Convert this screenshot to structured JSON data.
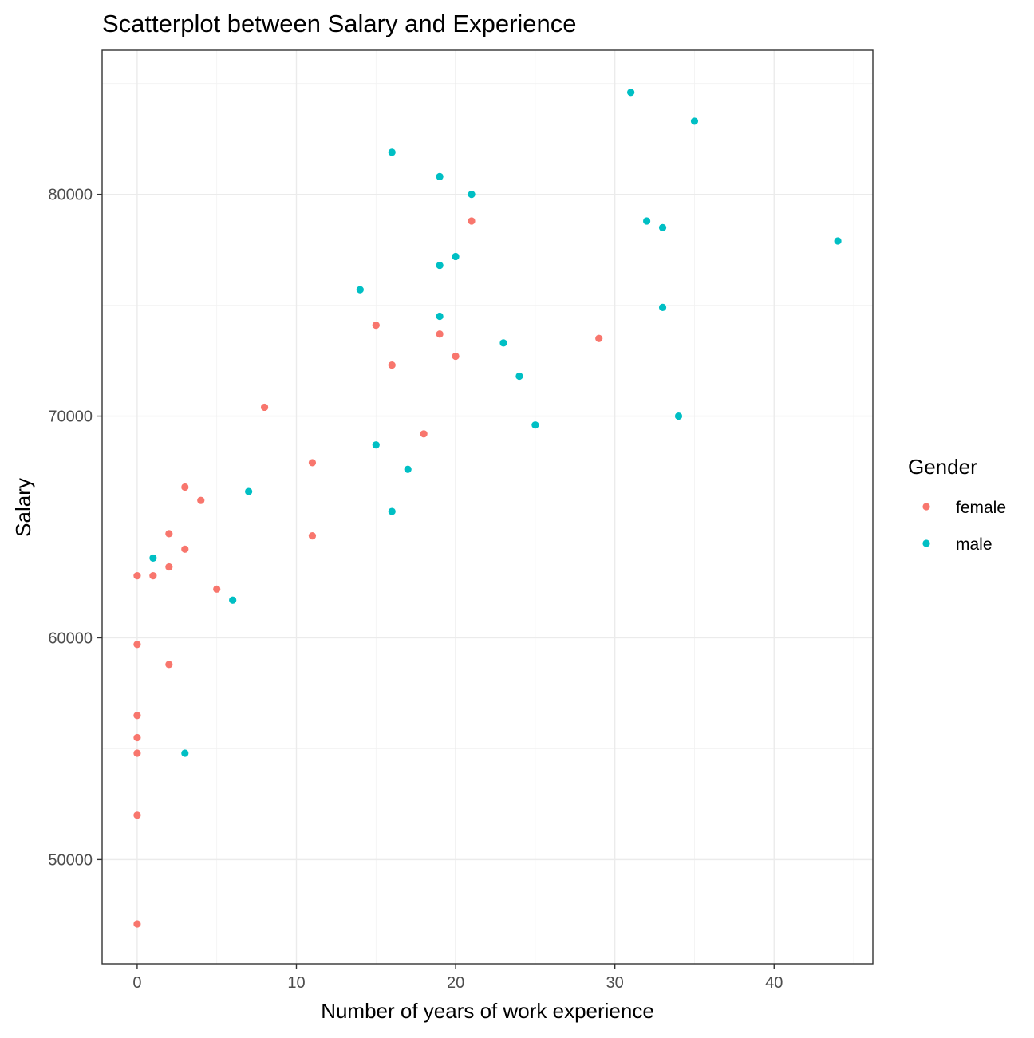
{
  "chart_data": {
    "type": "scatter",
    "title": "Scatterplot between Salary and Experience",
    "xlabel": "Number of years of work experience",
    "ylabel": "Salary",
    "xlim": [
      -2.2,
      46.2
    ],
    "ylim": [
      45300,
      86500
    ],
    "x_ticks": [
      0,
      10,
      20,
      30,
      40
    ],
    "y_ticks": [
      50000,
      60000,
      70000,
      80000
    ],
    "grid": true,
    "legend": {
      "title": "Gender",
      "position": "right"
    },
    "series": [
      {
        "name": "female",
        "color": "#F8766D",
        "points": [
          [
            0,
            62800
          ],
          [
            0,
            59700
          ],
          [
            0,
            56500
          ],
          [
            0,
            55500
          ],
          [
            0,
            54800
          ],
          [
            0,
            52000
          ],
          [
            0,
            47100
          ],
          [
            1,
            62800
          ],
          [
            2,
            64700
          ],
          [
            2,
            63200
          ],
          [
            2,
            58800
          ],
          [
            3,
            66800
          ],
          [
            3,
            64000
          ],
          [
            4,
            66200
          ],
          [
            5,
            62200
          ],
          [
            8,
            70400
          ],
          [
            11,
            67900
          ],
          [
            11,
            64600
          ],
          [
            15,
            74100
          ],
          [
            16,
            72300
          ],
          [
            18,
            69200
          ],
          [
            19,
            73700
          ],
          [
            20,
            72700
          ],
          [
            21,
            78800
          ],
          [
            29,
            73500
          ]
        ]
      },
      {
        "name": "male",
        "color": "#00BFC4",
        "points": [
          [
            1,
            63600
          ],
          [
            3,
            54800
          ],
          [
            6,
            61700
          ],
          [
            7,
            66600
          ],
          [
            14,
            75700
          ],
          [
            15,
            68700
          ],
          [
            16,
            81900
          ],
          [
            16,
            65700
          ],
          [
            17,
            67600
          ],
          [
            19,
            80800
          ],
          [
            19,
            76800
          ],
          [
            19,
            74500
          ],
          [
            20,
            77200
          ],
          [
            21,
            80000
          ],
          [
            23,
            73300
          ],
          [
            24,
            71800
          ],
          [
            25,
            69600
          ],
          [
            31,
            84600
          ],
          [
            32,
            78800
          ],
          [
            33,
            78500
          ],
          [
            33,
            74900
          ],
          [
            34,
            70000
          ],
          [
            35,
            83300
          ],
          [
            44,
            77900
          ]
        ]
      }
    ]
  }
}
